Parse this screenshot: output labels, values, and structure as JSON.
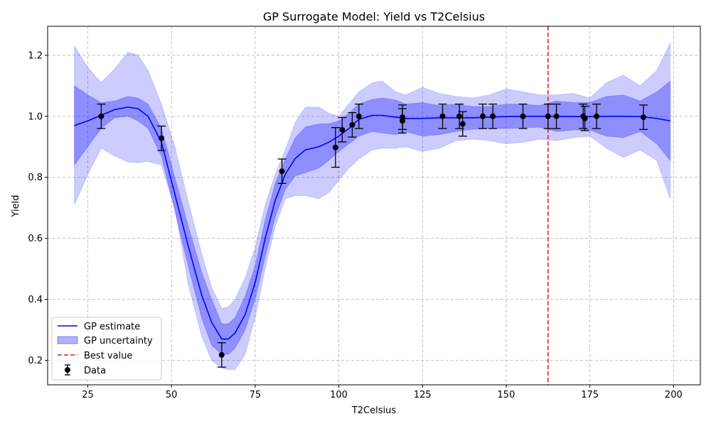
{
  "chart_data": {
    "type": "line",
    "title": "GP Surrogate Model: Yield vs T2Celsius",
    "xlabel": "T2Celsius",
    "ylabel": "Yield",
    "xlim": [
      13,
      208
    ],
    "ylim": [
      0.12,
      1.295
    ],
    "xticks": [
      25,
      50,
      75,
      100,
      125,
      150,
      175,
      200
    ],
    "yticks": [
      0.2,
      0.4,
      0.6,
      0.8,
      1.0,
      1.2
    ],
    "grid": true,
    "legend_position": "lower-left",
    "colors": {
      "mean": "#0000ff",
      "band_inner": "#0000ff",
      "band_outer": "#0000ff",
      "best": "#d62728",
      "data": "#000000"
    },
    "series": [
      {
        "name": "GP estimate",
        "x": [
          21,
          25,
          29,
          33,
          37,
          40,
          43,
          47,
          51,
          55,
          59,
          62,
          65,
          67,
          69,
          72,
          75,
          78,
          81,
          84,
          87,
          90,
          94,
          97,
          100,
          103,
          106,
          110,
          113,
          117,
          120,
          125,
          130,
          135,
          140,
          145,
          150,
          155,
          160,
          165,
          170,
          175,
          180,
          185,
          190,
          195,
          199
        ],
        "y": [
          0.97,
          0.985,
          1.003,
          1.022,
          1.03,
          1.025,
          1.0,
          0.915,
          0.745,
          0.575,
          0.415,
          0.325,
          0.27,
          0.27,
          0.29,
          0.35,
          0.455,
          0.6,
          0.725,
          0.81,
          0.862,
          0.89,
          0.9,
          0.915,
          0.935,
          0.96,
          0.99,
          1.003,
          1.003,
          0.997,
          0.993,
          0.993,
          0.995,
          0.995,
          0.995,
          0.997,
          0.999,
          1.0,
          1.0,
          1.0,
          0.999,
          0.999,
          1.0,
          1.0,
          0.999,
          0.993,
          0.985
        ]
      },
      {
        "name": "GP uncertainty",
        "x": [
          21,
          25,
          29,
          33,
          37,
          40,
          43,
          47,
          51,
          55,
          59,
          62,
          65,
          67,
          69,
          72,
          75,
          78,
          81,
          84,
          87,
          90,
          94,
          97,
          100,
          103,
          106,
          110,
          113,
          117,
          120,
          125,
          130,
          135,
          140,
          145,
          150,
          155,
          160,
          165,
          170,
          175,
          180,
          185,
          190,
          195,
          199
        ],
        "lower": [
          0.84,
          0.9,
          0.96,
          0.995,
          1.0,
          0.985,
          0.96,
          0.87,
          0.69,
          0.51,
          0.34,
          0.25,
          0.22,
          0.22,
          0.24,
          0.3,
          0.4,
          0.54,
          0.67,
          0.76,
          0.805,
          0.815,
          0.83,
          0.855,
          0.885,
          0.91,
          0.935,
          0.95,
          0.945,
          0.94,
          0.95,
          0.935,
          0.94,
          0.95,
          0.958,
          0.96,
          0.96,
          0.962,
          0.964,
          0.95,
          0.955,
          0.955,
          0.935,
          0.93,
          0.95,
          0.91,
          0.855
        ],
        "upper": [
          1.1,
          1.07,
          1.045,
          1.05,
          1.065,
          1.06,
          1.04,
          0.96,
          0.8,
          0.64,
          0.49,
          0.4,
          0.32,
          0.32,
          0.34,
          0.41,
          0.51,
          0.66,
          0.78,
          0.86,
          0.93,
          0.965,
          0.975,
          0.975,
          0.985,
          1.01,
          1.04,
          1.055,
          1.06,
          1.053,
          1.04,
          1.045,
          1.035,
          1.04,
          1.032,
          1.032,
          1.04,
          1.04,
          1.035,
          1.05,
          1.045,
          1.045,
          1.065,
          1.07,
          1.05,
          1.08,
          1.115
        ],
        "lower2": [
          0.71,
          0.81,
          0.895,
          0.87,
          0.85,
          0.848,
          0.852,
          0.84,
          0.7,
          0.45,
          0.28,
          0.2,
          0.175,
          0.17,
          0.17,
          0.22,
          0.34,
          0.5,
          0.64,
          0.73,
          0.74,
          0.74,
          0.73,
          0.75,
          0.79,
          0.83,
          0.86,
          0.89,
          0.895,
          0.895,
          0.9,
          0.885,
          0.895,
          0.92,
          0.925,
          0.92,
          0.91,
          0.915,
          0.925,
          0.92,
          0.93,
          0.935,
          0.895,
          0.865,
          0.89,
          0.855,
          0.73
        ],
        "upper2": [
          1.23,
          1.16,
          1.11,
          1.155,
          1.21,
          1.2,
          1.15,
          1.04,
          0.9,
          0.72,
          0.55,
          0.44,
          0.37,
          0.375,
          0.4,
          0.47,
          0.57,
          0.71,
          0.81,
          0.89,
          0.98,
          1.03,
          1.03,
          1.01,
          1.0,
          1.04,
          1.08,
          1.11,
          1.115,
          1.08,
          1.07,
          1.095,
          1.075,
          1.065,
          1.06,
          1.07,
          1.09,
          1.08,
          1.07,
          1.07,
          1.075,
          1.06,
          1.11,
          1.135,
          1.1,
          1.15,
          1.24
        ]
      },
      {
        "name": "Best value",
        "x": 162.5
      },
      {
        "name": "Data",
        "x": [
          29,
          47,
          65,
          83,
          99,
          101,
          104,
          106,
          119,
          119,
          131,
          136,
          137,
          143,
          146,
          155,
          162.5,
          165,
          173,
          173.5,
          177,
          191
        ],
        "y": [
          1.0,
          0.928,
          0.218,
          0.82,
          0.898,
          0.956,
          0.972,
          1.0,
          0.997,
          0.985,
          1.0,
          1.0,
          0.975,
          1.0,
          1.0,
          1.0,
          1.0,
          1.0,
          1.0,
          0.993,
          1.0,
          0.997
        ],
        "err": [
          0.04,
          0.04,
          0.04,
          0.04,
          0.065,
          0.04,
          0.04,
          0.04,
          0.04,
          0.04,
          0.04,
          0.04,
          0.04,
          0.04,
          0.04,
          0.04,
          0.04,
          0.04,
          0.04,
          0.04,
          0.04,
          0.04
        ]
      }
    ]
  }
}
